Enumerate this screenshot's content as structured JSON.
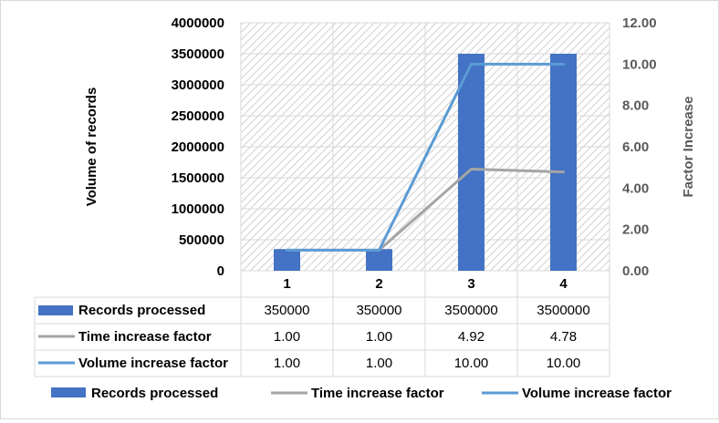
{
  "chart_data": {
    "type": "bar",
    "categories": [
      "1",
      "2",
      "3",
      "4"
    ],
    "series": [
      {
        "name": "Records processed",
        "kind": "bar",
        "axis": "left",
        "color": "#4472C4",
        "values": [
          350000,
          350000,
          3500000,
          3500000
        ],
        "table_labels": [
          "350000",
          "350000",
          "3500000",
          "3500000"
        ]
      },
      {
        "name": "Time increase factor",
        "kind": "line",
        "axis": "right",
        "color": "#A5A5A5",
        "values": [
          1.0,
          1.0,
          4.92,
          4.78
        ],
        "table_labels": [
          "1.00",
          "1.00",
          "4.92",
          "4.78"
        ]
      },
      {
        "name": "Volume increase factor",
        "kind": "line",
        "axis": "right",
        "color": "#5B9BD5",
        "values": [
          1.0,
          1.0,
          10.0,
          10.0
        ],
        "table_labels": [
          "1.00",
          "1.00",
          "10.00",
          "10.00"
        ]
      }
    ],
    "title": "",
    "ylabel": "Volume of records",
    "y2label": "Factor Increase",
    "ylim": [
      0,
      4000000
    ],
    "y2lim": [
      0,
      12
    ],
    "yticks": [
      "0",
      "500000",
      "1000000",
      "1500000",
      "2000000",
      "2500000",
      "3000000",
      "3500000",
      "4000000"
    ],
    "y2ticks": [
      "0.00",
      "2.00",
      "4.00",
      "6.00",
      "8.00",
      "10.00",
      "12.00"
    ],
    "grid": true,
    "data_table": true,
    "legend": "bottom"
  }
}
